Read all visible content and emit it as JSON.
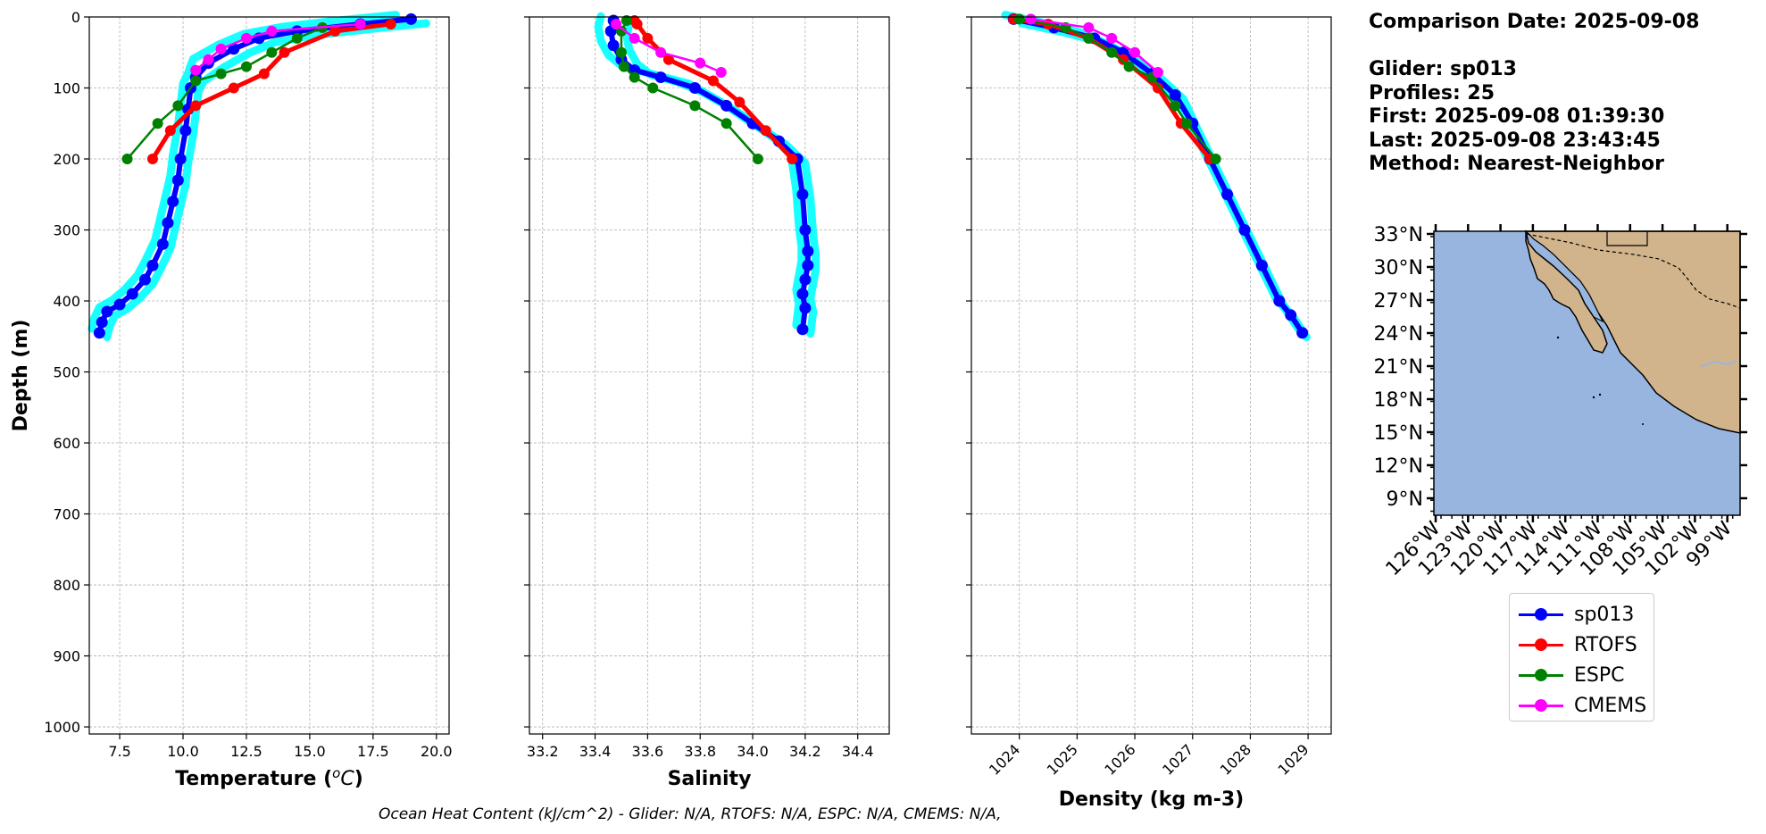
{
  "info": {
    "comparison_date": "Comparison Date: 2025-09-08",
    "glider": "Glider: sp013",
    "profiles": "Profiles: 25",
    "first": "First: 2025-09-08 01:39:30",
    "last": "Last: 2025-09-08 23:43:45",
    "method": "Method: Nearest-Neighbor"
  },
  "footer": "Ocean Heat Content (kJ/cm^2) - Glider: N/A,  RTOFS: N/A,  ESPC: N/A,  CMEMS: N/A,",
  "legend": [
    {
      "name": "sp013",
      "color": "#0000ff"
    },
    {
      "name": "RTOFS",
      "color": "#ff0000"
    },
    {
      "name": "ESPC",
      "color": "#008000"
    },
    {
      "name": "CMEMS",
      "color": "#ff00ff"
    }
  ],
  "colors": {
    "glider_raw": "#00ffff",
    "grid": "#b0b0b0",
    "ocean": "#98b5e0",
    "land": "#d2b48c"
  },
  "chart_data": [
    {
      "type": "line",
      "xlabel": "Temperature ($^oC$)",
      "ylabel": "Depth (m)",
      "xlim": [
        6.3,
        20.5
      ],
      "ylim": [
        1010,
        0
      ],
      "x_ticks": [
        "7.5",
        "10.0",
        "12.5",
        "15.0",
        "17.5",
        "20.0"
      ],
      "x_tick_values": [
        7.5,
        10.0,
        12.5,
        15.0,
        17.5,
        20.0
      ],
      "y_ticks": [
        "0",
        "100",
        "200",
        "300",
        "400",
        "500",
        "600",
        "700",
        "800",
        "900",
        "1000"
      ],
      "y_tick_values": [
        0,
        100,
        200,
        300,
        400,
        500,
        600,
        700,
        800,
        900,
        1000
      ],
      "grid": true,
      "series": [
        {
          "name": "sp013",
          "x": [
            19.0,
            17.0,
            14.5,
            13.0,
            12.0,
            11.0,
            10.5,
            10.3,
            10.2,
            10.1,
            9.9,
            9.8,
            9.6,
            9.4,
            9.2,
            8.8,
            8.5,
            8.0,
            7.5,
            7.0,
            6.8,
            6.7
          ],
          "y": [
            3,
            10,
            20,
            30,
            45,
            65,
            85,
            100,
            130,
            160,
            200,
            230,
            260,
            290,
            320,
            350,
            370,
            390,
            405,
            415,
            430,
            445
          ]
        },
        {
          "name": "RTOFS",
          "x": [
            18.2,
            16.0,
            14.0,
            13.2,
            12.0,
            10.5,
            9.5,
            8.8
          ],
          "y": [
            10,
            20,
            50,
            80,
            100,
            125,
            160,
            200
          ]
        },
        {
          "name": "ESPC",
          "x": [
            15.5,
            14.5,
            13.5,
            12.5,
            11.5,
            10.5,
            9.8,
            9.0,
            7.8
          ],
          "y": [
            15,
            30,
            50,
            70,
            80,
            90,
            125,
            150,
            200
          ]
        },
        {
          "name": "CMEMS",
          "x": [
            17.0,
            13.5,
            12.5,
            11.5,
            11.0,
            10.5
          ],
          "y": [
            10,
            20,
            30,
            45,
            60,
            75
          ]
        }
      ]
    },
    {
      "type": "line",
      "xlabel": "Salinity",
      "xlim": [
        33.15,
        34.52
      ],
      "ylim": [
        1010,
        0
      ],
      "x_ticks": [
        "33.2",
        "33.4",
        "33.6",
        "33.8",
        "34.0",
        "34.2",
        "34.4"
      ],
      "x_tick_values": [
        33.2,
        33.4,
        33.6,
        33.8,
        34.0,
        34.2,
        34.4
      ],
      "grid": true,
      "series": [
        {
          "name": "sp013",
          "x": [
            33.47,
            33.46,
            33.47,
            33.5,
            33.55,
            33.65,
            33.78,
            33.9,
            34.0,
            34.1,
            34.17,
            34.19,
            34.2,
            34.21,
            34.21,
            34.2,
            34.19,
            34.2,
            34.19
          ],
          "y": [
            5,
            20,
            40,
            60,
            75,
            85,
            100,
            125,
            150,
            175,
            200,
            250,
            300,
            330,
            350,
            370,
            390,
            410,
            440
          ]
        },
        {
          "name": "RTOFS",
          "x": [
            33.55,
            33.56,
            33.6,
            33.68,
            33.85,
            33.95,
            34.05,
            34.15
          ],
          "y": [
            5,
            10,
            30,
            60,
            90,
            120,
            160,
            200
          ]
        },
        {
          "name": "ESPC",
          "x": [
            33.52,
            33.5,
            33.5,
            33.51,
            33.55,
            33.62,
            33.78,
            33.9,
            34.02
          ],
          "y": [
            5,
            20,
            50,
            70,
            85,
            100,
            125,
            150,
            200
          ]
        },
        {
          "name": "CMEMS",
          "x": [
            33.48,
            33.55,
            33.65,
            33.8,
            33.88
          ],
          "y": [
            10,
            30,
            50,
            65,
            78
          ]
        }
      ]
    },
    {
      "type": "line",
      "xlabel": "Density (kg m-3)",
      "xlim": [
        1023.17,
        1029.4
      ],
      "ylim": [
        1010,
        0
      ],
      "x_ticks": [
        "1024",
        "1025",
        "1026",
        "1027",
        "1028",
        "1029"
      ],
      "x_tick_values": [
        1024,
        1025,
        1026,
        1027,
        1028,
        1029
      ],
      "grid": true,
      "series": [
        {
          "name": "sp013",
          "x": [
            1023.9,
            1024.6,
            1025.3,
            1025.8,
            1026.3,
            1026.7,
            1027.0,
            1027.3,
            1027.6,
            1027.9,
            1028.2,
            1028.5,
            1028.7,
            1028.9
          ],
          "y": [
            3,
            15,
            30,
            50,
            80,
            110,
            150,
            200,
            250,
            300,
            350,
            400,
            420,
            445
          ]
        },
        {
          "name": "RTOFS",
          "x": [
            1023.9,
            1024.5,
            1025.2,
            1025.8,
            1026.4,
            1026.8,
            1027.3
          ],
          "y": [
            3,
            10,
            30,
            60,
            100,
            150,
            200
          ]
        },
        {
          "name": "ESPC",
          "x": [
            1024.0,
            1024.8,
            1025.2,
            1025.6,
            1025.9,
            1026.3,
            1026.7,
            1026.9,
            1027.4
          ],
          "y": [
            3,
            15,
            30,
            50,
            70,
            85,
            125,
            150,
            200
          ]
        },
        {
          "name": "CMEMS",
          "x": [
            1024.2,
            1025.2,
            1025.6,
            1026.0,
            1026.4
          ],
          "y": [
            3,
            15,
            30,
            50,
            78
          ]
        }
      ]
    }
  ],
  "map": {
    "lat_labels": [
      "33°N",
      "30°N",
      "27°N",
      "24°N",
      "21°N",
      "18°N",
      "15°N",
      "12°N",
      "9°N"
    ],
    "lon_labels": [
      "126°W",
      "123°W",
      "120°W",
      "117°W",
      "114°W",
      "111°W",
      "108°W",
      "105°W",
      "102°W",
      "99°W"
    ]
  }
}
